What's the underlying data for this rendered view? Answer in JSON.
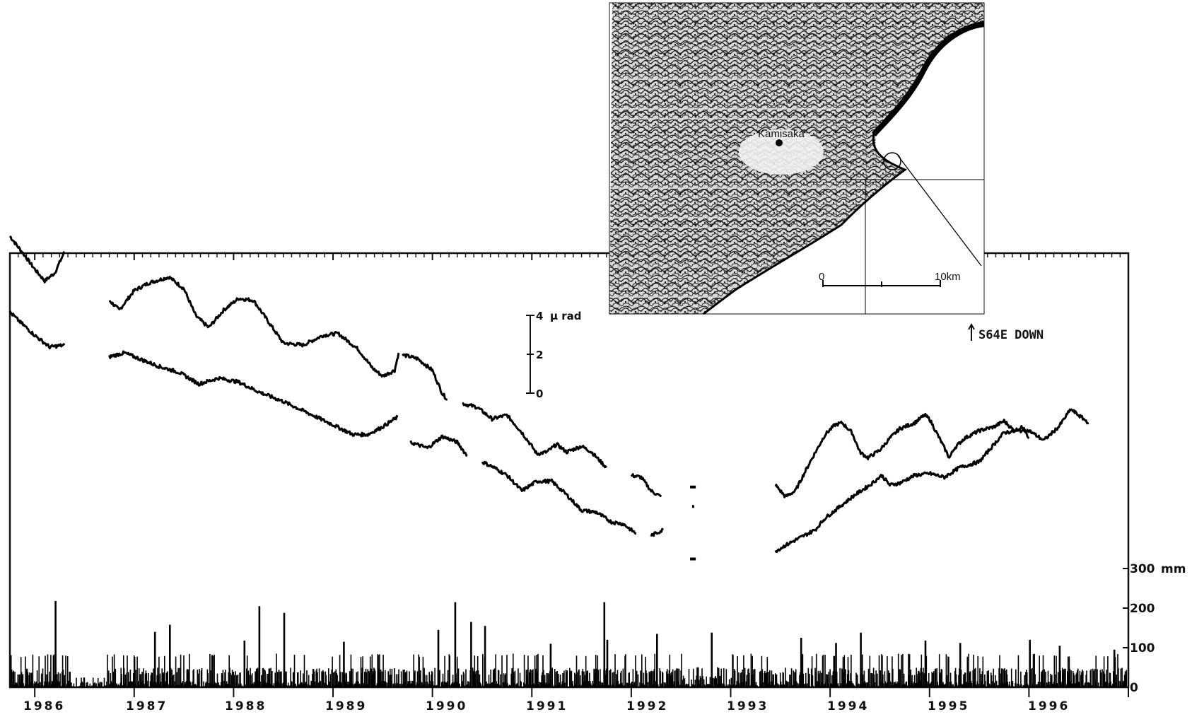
{
  "chart_data": {
    "type": "line",
    "years": [
      "1986",
      "1987",
      "1988",
      "1989",
      "1990",
      "1991",
      "1992",
      "1993",
      "1994",
      "1995",
      "1996"
    ],
    "x_range": [
      1985.75,
      1997.0
    ],
    "tilt_scale": {
      "unit": "μ rad",
      "ticks": [
        "4",
        "2",
        "0"
      ]
    },
    "direction_label": "S64E DOWN",
    "rainfall_axis": {
      "unit": "mm",
      "ticks": [
        "300",
        "200",
        "100",
        "0"
      ],
      "ylim": [
        0,
        300
      ]
    },
    "series": [
      {
        "segments": [
          [
            [
              1985.75,
              9.6
            ],
            [
              1985.9,
              8.6
            ],
            [
              1986.0,
              7.9
            ],
            [
              1986.1,
              7.3
            ],
            [
              1986.2,
              7.7
            ],
            [
              1986.3,
              8.8
            ]
          ],
          [
            [
              1986.75,
              6.3
            ],
            [
              1986.85,
              5.8
            ],
            [
              1987.0,
              6.8
            ],
            [
              1987.15,
              7.2
            ],
            [
              1987.35,
              7.5
            ],
            [
              1987.5,
              6.9
            ],
            [
              1987.62,
              5.5
            ],
            [
              1987.75,
              4.9
            ],
            [
              1987.9,
              5.8
            ],
            [
              1988.05,
              6.4
            ],
            [
              1988.2,
              6.3
            ],
            [
              1988.35,
              5.2
            ],
            [
              1988.5,
              4.1
            ],
            [
              1988.7,
              4.0
            ],
            [
              1988.9,
              4.5
            ],
            [
              1989.05,
              4.6
            ],
            [
              1989.25,
              3.8
            ],
            [
              1989.4,
              2.8
            ],
            [
              1989.5,
              2.4
            ],
            [
              1989.62,
              2.7
            ],
            [
              1989.66,
              3.6
            ]
          ],
          [
            [
              1989.7,
              3.5
            ],
            [
              1989.85,
              3.3
            ],
            [
              1990.0,
              2.7
            ],
            [
              1990.1,
              1.5
            ],
            [
              1990.15,
              1.2
            ]
          ],
          [
            [
              1990.3,
              1.0
            ],
            [
              1990.45,
              0.8
            ],
            [
              1990.6,
              0.2
            ],
            [
              1990.75,
              0.4
            ],
            [
              1990.9,
              -0.5
            ],
            [
              1991.0,
              -1.2
            ],
            [
              1991.05,
              -1.6
            ],
            [
              1991.15,
              -1.5
            ],
            [
              1991.25,
              -1.1
            ],
            [
              1991.35,
              -1.5
            ],
            [
              1991.5,
              -1.2
            ],
            [
              1991.6,
              -1.5
            ],
            [
              1991.75,
              -2.3
            ]
          ],
          [
            [
              1992.0,
              -2.7
            ],
            [
              1992.1,
              -2.8
            ],
            [
              1992.2,
              -3.5
            ],
            [
              1992.3,
              -3.8
            ]
          ],
          [
            [
              1993.45,
              -3.2
            ],
            [
              1993.55,
              -3.8
            ],
            [
              1993.65,
              -3.5
            ],
            [
              1993.8,
              -2.0
            ],
            [
              1993.95,
              -0.6
            ],
            [
              1994.05,
              -0.1
            ],
            [
              1994.12,
              0.0
            ],
            [
              1994.22,
              -0.5
            ],
            [
              1994.3,
              -1.5
            ],
            [
              1994.38,
              -1.8
            ],
            [
              1994.5,
              -1.4
            ],
            [
              1994.6,
              -0.8
            ],
            [
              1994.7,
              -0.3
            ],
            [
              1994.85,
              0.0
            ],
            [
              1994.95,
              0.4
            ],
            [
              1995.0,
              0.2
            ],
            [
              1995.1,
              -0.8
            ],
            [
              1995.2,
              -1.8
            ],
            [
              1995.25,
              -1.3
            ],
            [
              1995.35,
              -0.8
            ],
            [
              1995.5,
              -0.4
            ],
            [
              1995.65,
              -0.2
            ],
            [
              1995.75,
              0.1
            ],
            [
              1995.85,
              -0.4
            ],
            [
              1995.95,
              -0.2
            ],
            [
              1996.0,
              -0.8
            ]
          ]
        ]
      },
      {
        "segments": [
          [
            [
              1985.75,
              5.7
            ],
            [
              1985.85,
              5.2
            ],
            [
              1986.0,
              4.5
            ],
            [
              1986.15,
              3.9
            ],
            [
              1986.3,
              4.0
            ]
          ],
          [
            [
              1986.75,
              3.4
            ],
            [
              1986.9,
              3.6
            ],
            [
              1987.05,
              3.3
            ],
            [
              1987.25,
              2.9
            ],
            [
              1987.45,
              2.6
            ],
            [
              1987.65,
              2.0
            ],
            [
              1987.85,
              2.3
            ],
            [
              1988.05,
              2.1
            ],
            [
              1988.25,
              1.6
            ],
            [
              1988.5,
              1.1
            ],
            [
              1988.75,
              0.5
            ],
            [
              1989.0,
              -0.1
            ],
            [
              1989.2,
              -0.6
            ],
            [
              1989.35,
              -0.6
            ],
            [
              1989.5,
              -0.2
            ],
            [
              1989.65,
              0.3
            ]
          ],
          [
            [
              1989.78,
              -1.0
            ],
            [
              1989.95,
              -1.3
            ],
            [
              1990.1,
              -0.7
            ],
            [
              1990.25,
              -1.0
            ],
            [
              1990.35,
              -1.7
            ]
          ],
          [
            [
              1990.5,
              -2.0
            ],
            [
              1990.62,
              -2.3
            ],
            [
              1990.75,
              -2.7
            ],
            [
              1990.9,
              -3.5
            ],
            [
              1991.05,
              -3.0
            ],
            [
              1991.2,
              -3.0
            ],
            [
              1991.35,
              -3.7
            ],
            [
              1991.5,
              -4.5
            ],
            [
              1991.65,
              -4.6
            ],
            [
              1991.8,
              -5.1
            ],
            [
              1991.92,
              -5.2
            ],
            [
              1992.05,
              -5.7
            ]
          ],
          [
            [
              1992.2,
              -5.8
            ],
            [
              1992.32,
              -5.5
            ]
          ],
          [
            [
              1993.45,
              -6.6
            ],
            [
              1993.55,
              -6.3
            ],
            [
              1993.7,
              -5.9
            ],
            [
              1993.85,
              -5.5
            ],
            [
              1993.95,
              -4.9
            ],
            [
              1994.1,
              -4.3
            ],
            [
              1994.25,
              -3.7
            ],
            [
              1994.4,
              -3.2
            ],
            [
              1994.52,
              -2.7
            ],
            [
              1994.6,
              -3.2
            ],
            [
              1994.7,
              -3.1
            ],
            [
              1994.85,
              -2.7
            ],
            [
              1995.0,
              -2.6
            ],
            [
              1995.15,
              -2.8
            ],
            [
              1995.3,
              -2.3
            ],
            [
              1995.5,
              -2.0
            ],
            [
              1995.6,
              -1.4
            ],
            [
              1995.75,
              -0.5
            ],
            [
              1995.9,
              -0.4
            ],
            [
              1996.0,
              -0.4
            ],
            [
              1996.15,
              -0.9
            ],
            [
              1996.3,
              -0.2
            ],
            [
              1996.42,
              0.7
            ],
            [
              1996.55,
              0.2
            ],
            [
              1996.6,
              0.0
            ]
          ]
        ]
      }
    ]
  },
  "map_inset": {
    "place_label": "Kamisaka",
    "scale_start": "0",
    "scale_end": "10km"
  }
}
